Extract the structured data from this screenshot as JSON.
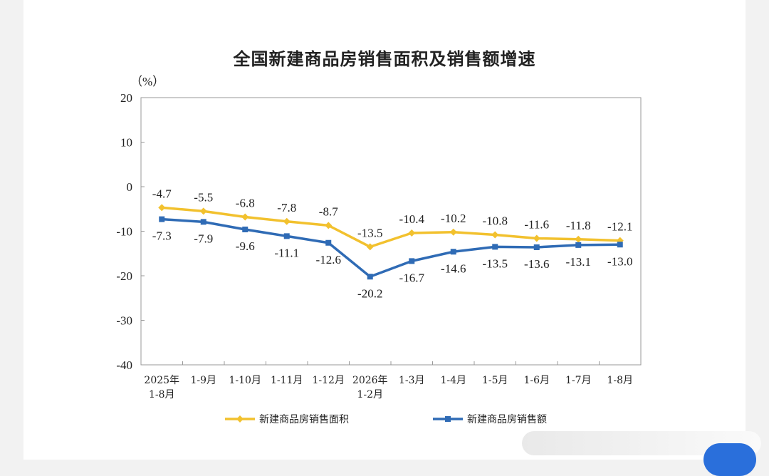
{
  "title": "全国新建商品房销售面积及销售额增速",
  "chart_data": {
    "type": "line",
    "title": "全国新建商品房销售面积及销售额增速",
    "ylabel": "（%）",
    "ylim": [
      -40,
      20
    ],
    "yticks": [
      "20",
      "10",
      "0",
      "-10",
      "-20",
      "-30",
      "-40"
    ],
    "categories": [
      "2025年 1-8月",
      "1-9月",
      "1-10月",
      "1-11月",
      "1-12月",
      "2026年 1-2月",
      "1-3月",
      "1-4月",
      "1-5月",
      "1-6月",
      "1-7月",
      "1-8月"
    ],
    "category_lines": [
      [
        "2025年",
        "1-8月"
      ],
      [
        "1-9月"
      ],
      [
        "1-10月"
      ],
      [
        "1-11月"
      ],
      [
        "1-12月"
      ],
      [
        "2026年",
        "1-2月"
      ],
      [
        "1-3月"
      ],
      [
        "1-4月"
      ],
      [
        "1-5月"
      ],
      [
        "1-6月"
      ],
      [
        "1-7月"
      ],
      [
        "1-8月"
      ]
    ],
    "series": [
      {
        "name": "新建商品房销售面积",
        "color": "#f2c12e",
        "marker": "diamond",
        "values": [
          -4.7,
          -5.5,
          -6.8,
          -7.8,
          -8.7,
          -13.5,
          -10.4,
          -10.2,
          -10.8,
          -11.6,
          -11.8,
          -12.1
        ],
        "labels": [
          "-4.7",
          "-5.5",
          "-6.8",
          "-7.8",
          "-8.7",
          "-13.5",
          "-10.4",
          "-10.2",
          "-10.8",
          "-11.6",
          "-11.8",
          "-12.1"
        ]
      },
      {
        "name": "新建商品房销售额",
        "color": "#2f6bb5",
        "marker": "square",
        "values": [
          -7.3,
          -7.9,
          -9.6,
          -11.1,
          -12.6,
          -20.2,
          -16.7,
          -14.6,
          -13.5,
          -13.6,
          -13.1,
          -13.0
        ],
        "labels": [
          "-7.3",
          "-7.9",
          "-9.6",
          "-11.1",
          "-12.6",
          "-20.2",
          "-16.7",
          "-14.6",
          "-13.5",
          "-13.6",
          "-13.1",
          "-13.0"
        ]
      }
    ],
    "grid": false,
    "legend": "bottom"
  }
}
